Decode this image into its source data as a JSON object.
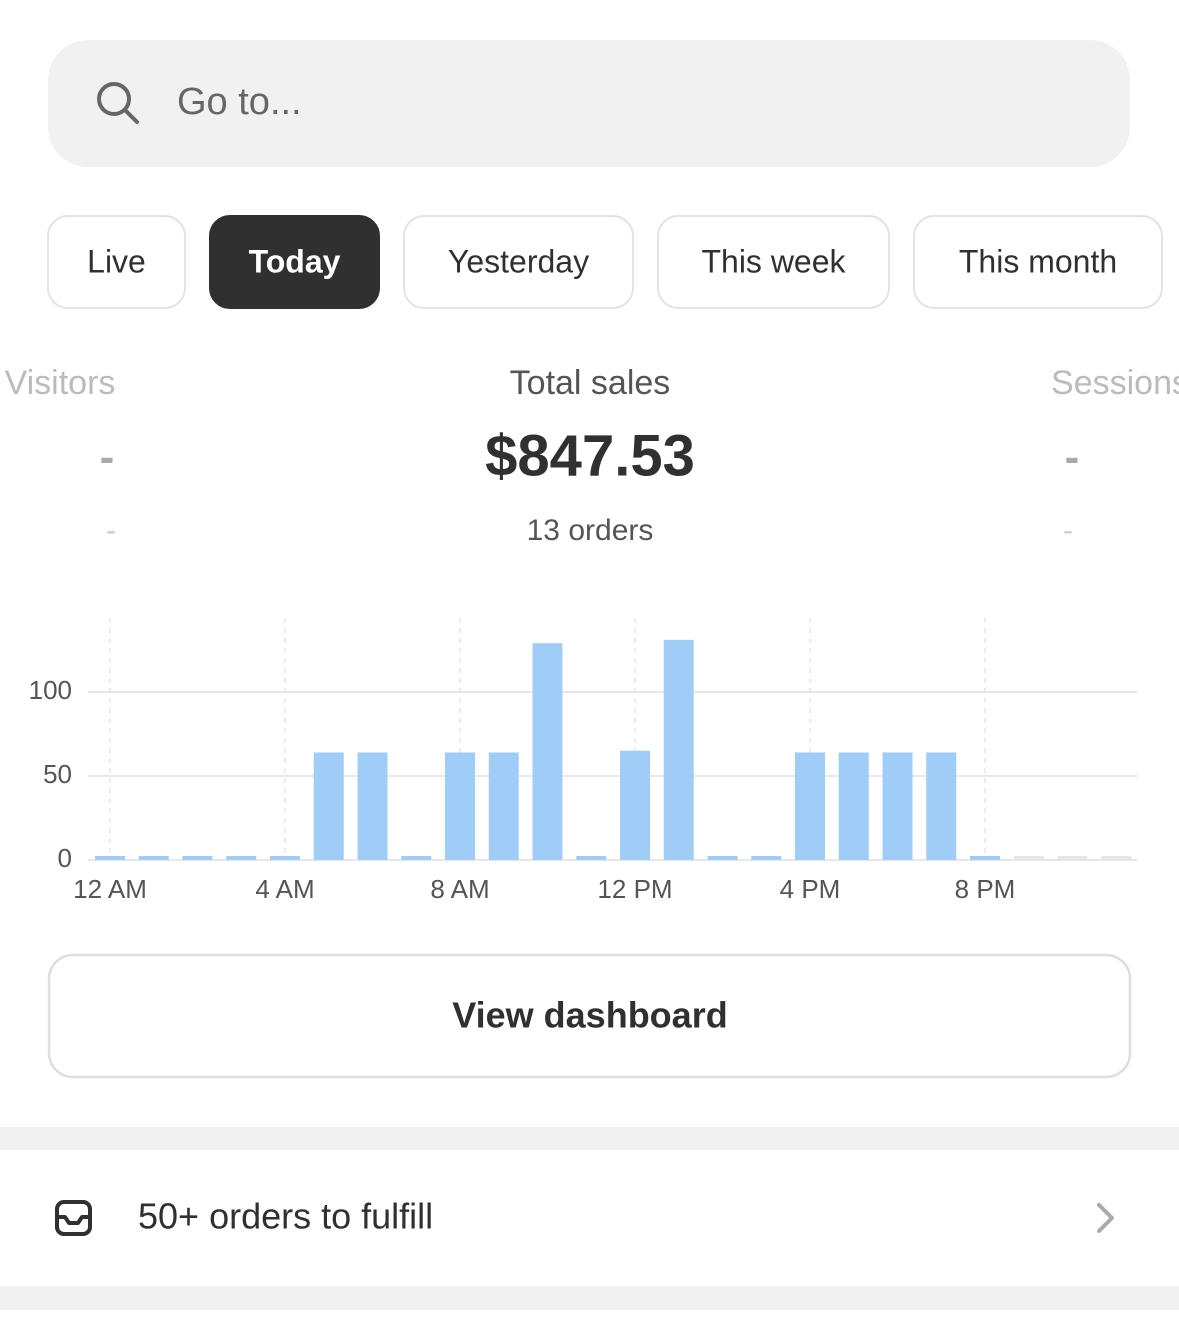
{
  "search": {
    "placeholder": "Go to..."
  },
  "tabs": [
    {
      "label": "Live",
      "active": false
    },
    {
      "label": "Today",
      "active": true
    },
    {
      "label": "Yesterday",
      "active": false
    },
    {
      "label": "This week",
      "active": false
    },
    {
      "label": "This month",
      "active": false
    }
  ],
  "metrics": [
    {
      "label": "Visitors",
      "value": "-",
      "sub": "-"
    },
    {
      "label": "Total sales",
      "value": "$847.53",
      "sub": "13 orders"
    },
    {
      "label": "Sessions",
      "value": "-",
      "sub": "-"
    }
  ],
  "chart_data": {
    "type": "bar",
    "categories": [
      "12 AM",
      null,
      null,
      null,
      "4 AM",
      null,
      null,
      null,
      "8 AM",
      null,
      null,
      null,
      "12 PM",
      null,
      null,
      null,
      "4 PM",
      null,
      null,
      null,
      "8 PM",
      null,
      null,
      null
    ],
    "values": [
      0,
      0,
      0,
      0,
      0,
      64,
      64,
      0,
      64,
      64,
      129,
      0,
      65,
      131,
      0,
      0,
      64,
      64,
      64,
      64,
      0,
      null,
      null,
      null
    ],
    "color": "#a0cdf7",
    "ylim": [
      0,
      144
    ],
    "yticks": [
      0,
      50,
      100
    ],
    "grid": true
  },
  "button": {
    "label": "View dashboard"
  },
  "task": {
    "label": "50+ orders to fulfill"
  }
}
